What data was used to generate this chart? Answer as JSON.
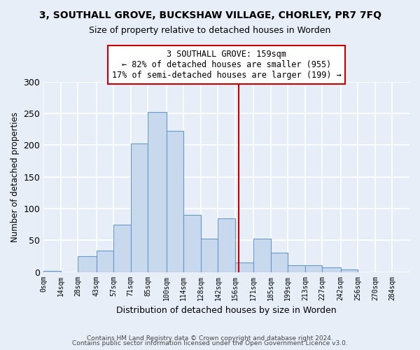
{
  "title": "3, SOUTHALL GROVE, BUCKSHAW VILLAGE, CHORLEY, PR7 7FQ",
  "subtitle": "Size of property relative to detached houses in Worden",
  "xlabel": "Distribution of detached houses by size in Worden",
  "ylabel": "Number of detached properties",
  "bin_labels": [
    "0sqm",
    "14sqm",
    "28sqm",
    "43sqm",
    "57sqm",
    "71sqm",
    "85sqm",
    "100sqm",
    "114sqm",
    "128sqm",
    "142sqm",
    "156sqm",
    "171sqm",
    "185sqm",
    "199sqm",
    "213sqm",
    "227sqm",
    "242sqm",
    "256sqm",
    "270sqm",
    "284sqm"
  ],
  "bin_edges": [
    0,
    14,
    28,
    43,
    57,
    71,
    85,
    100,
    114,
    128,
    142,
    156,
    171,
    185,
    199,
    213,
    227,
    242,
    256,
    270,
    284
  ],
  "bar_heights": [
    2,
    0,
    25,
    34,
    75,
    203,
    252,
    222,
    90,
    52,
    84,
    15,
    53,
    30,
    11,
    10,
    7,
    4,
    0,
    0
  ],
  "bar_color": "#c8d9ed",
  "bar_edge_color": "#6699cc",
  "property_line_x": 159,
  "property_line_color": "#cc0000",
  "annotation_text": "3 SOUTHALL GROVE: 159sqm\n← 82% of detached houses are smaller (955)\n17% of semi-detached houses are larger (199) →",
  "annotation_box_color": "#ffffff",
  "annotation_box_edge": "#cc0000",
  "ylim": [
    0,
    300
  ],
  "xlim": [
    0,
    298
  ],
  "footnote1": "Contains HM Land Registry data © Crown copyright and database right 2024.",
  "footnote2": "Contains public sector information licensed under the Open Government Licence v3.0.",
  "bg_color": "#e8eef8"
}
